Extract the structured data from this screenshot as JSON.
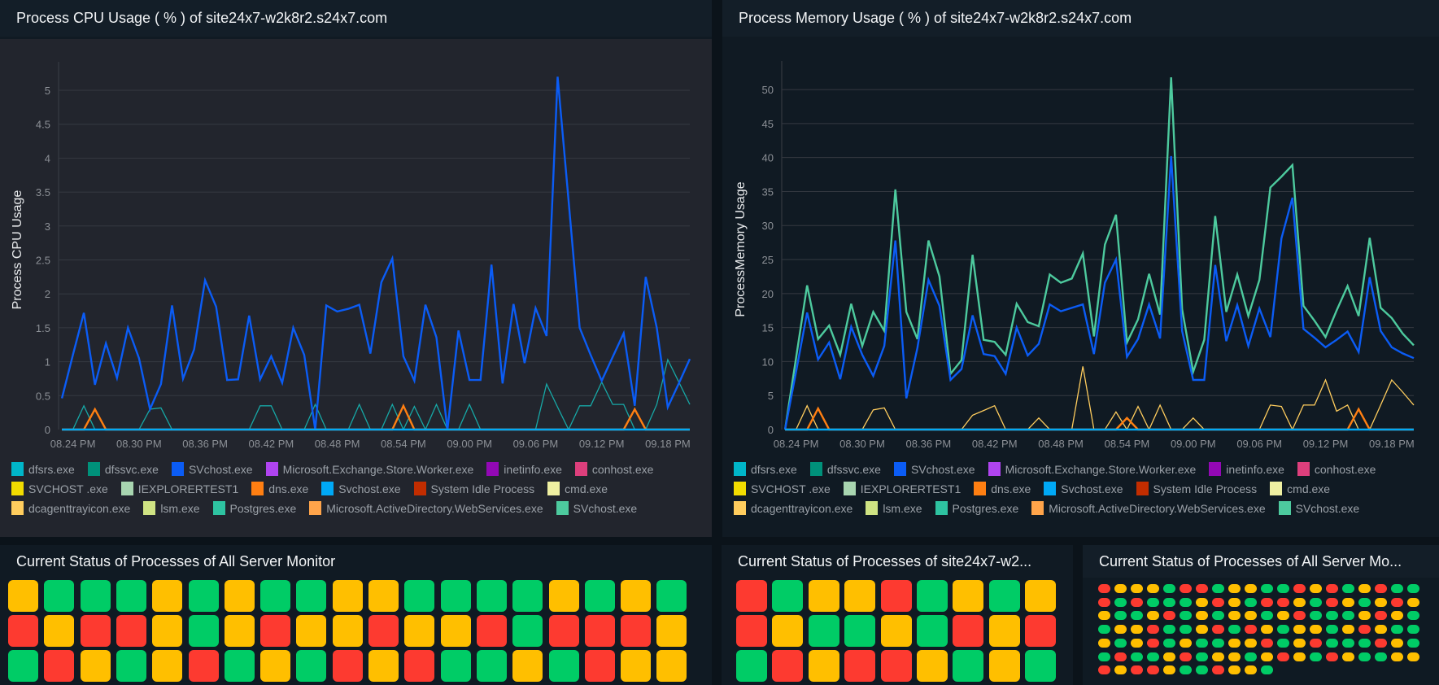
{
  "colors": {
    "up": "#00cc66",
    "trouble": "#ffbf00",
    "down": "#fd3a30"
  },
  "cpu_panel": {
    "title": "Process CPU Usage ( % ) of site24x7-w2k8r2.s24x7.com"
  },
  "memory_panel": {
    "title": "Process Memory Usage ( % ) of site24x7-w2k8r2.s24x7.com"
  },
  "legend": [
    {
      "label": "dfsrs.exe",
      "color": "#00b6c9"
    },
    {
      "label": "dfssvc.exe",
      "color": "#00917a"
    },
    {
      "label": "SVchost.exe",
      "color": "#0b5cf5"
    },
    {
      "label": "Microsoft.Exchange.Store.Worker.exe",
      "color": "#b044f0"
    },
    {
      "label": "inetinfo.exe",
      "color": "#9308b5"
    },
    {
      "label": "conhost.exe",
      "color": "#dd3f7c"
    },
    {
      "label": "SVCHOST .exe",
      "color": "#f2dc00"
    },
    {
      "label": "IEXPLORERTEST1",
      "color": "#a8d5b0"
    },
    {
      "label": "dns.exe",
      "color": "#ff7f12"
    },
    {
      "label": "Svchost.exe",
      "color": "#00a9f6"
    },
    {
      "label": "System Idle Process",
      "color": "#c22d00"
    },
    {
      "label": "cmd.exe",
      "color": "#eff0a2"
    },
    {
      "label": "dcagenttrayicon.exe",
      "color": "#ffcd5e"
    },
    {
      "label": "lsm.exe",
      "color": "#cfe383"
    },
    {
      "label": "Postgres.exe",
      "color": "#2ec3a1"
    },
    {
      "label": "Microsoft.ActiveDirectory.WebServices.exe",
      "color": "#ffa44a"
    },
    {
      "label": "SVchost.exe",
      "color": "#4dca9e"
    }
  ],
  "chart_data": [
    {
      "type": "line",
      "title": "Process CPU Usage ( % ) of site24x7-w2k8r2.s24x7.com",
      "ylabel": "Process CPU Usage",
      "xlabel": "",
      "ylim": [
        0,
        5.3
      ],
      "yticks": [
        "0",
        "0.5",
        "1",
        "1.5",
        "2",
        "2.5",
        "3",
        "3.5",
        "4",
        "4.5",
        "5"
      ],
      "ytick_values": [
        0,
        0.5,
        1,
        1.5,
        2,
        2.5,
        3,
        3.5,
        4,
        4.5,
        5
      ],
      "xticks": [
        "08.24 PM",
        "08.30 PM",
        "08.36 PM",
        "08.42 PM",
        "08.48 PM",
        "08.54 PM",
        "09.00 PM",
        "09.06 PM",
        "09.12 PM",
        "09.18 PM"
      ],
      "grid": true,
      "legend": "bottom",
      "x": [
        "08.23 PM",
        "08.24 PM",
        "08.25 PM",
        "08.26 PM",
        "08.27 PM",
        "08.28 PM",
        "08.29 PM",
        "08.30 PM",
        "08.31 PM",
        "08.32 PM",
        "08.33 PM",
        "08.34 PM",
        "08.35 PM",
        "08.36 PM",
        "08.37 PM",
        "08.38 PM",
        "08.39 PM",
        "08.40 PM",
        "08.41 PM",
        "08.42 PM",
        "08.43 PM",
        "08.44 PM",
        "08.45 PM",
        "08.46 PM",
        "08.47 PM",
        "08.48 PM",
        "08.49 PM",
        "08.50 PM",
        "08.51 PM",
        "08.52 PM",
        "08.53 PM",
        "08.54 PM",
        "08.55 PM",
        "08.56 PM",
        "08.57 PM",
        "08.58 PM",
        "08.59 PM",
        "09.00 PM",
        "09.01 PM",
        "09.02 PM",
        "09.03 PM",
        "09.04 PM",
        "09.05 PM",
        "09.06 PM",
        "09.07 PM",
        "09.08 PM",
        "09.09 PM",
        "09.10 PM",
        "09.11 PM",
        "09.12 PM",
        "09.13 PM",
        "09.14 PM",
        "09.15 PM",
        "09.16 PM",
        "09.17 PM",
        "09.18 PM",
        "09.19 PM",
        "09.20 PM"
      ],
      "series": [
        {
          "name": "dfsrs.exe",
          "color": "#17a8a6",
          "values": [
            0,
            0,
            0.35,
            0,
            0,
            0,
            0,
            0,
            0.3,
            0.32,
            0,
            0,
            0,
            0,
            0,
            0,
            0,
            0,
            0.35,
            0.35,
            0,
            0,
            0,
            0.37,
            0,
            0,
            0,
            0.37,
            0,
            0,
            0.37,
            0,
            0.34,
            0,
            0.37,
            0,
            0,
            0.37,
            0,
            0,
            0,
            0,
            0,
            0,
            0.67,
            0.33,
            0,
            0.35,
            0.35,
            0.7,
            0.37,
            0.37,
            0,
            0,
            0.37,
            1.03,
            0.7,
            0.37
          ]
        },
        {
          "name": "dns.exe",
          "color": "#ff7f12",
          "values": [
            0,
            0,
            0,
            0.3,
            0,
            0,
            0,
            0,
            0,
            0,
            0,
            0,
            0,
            0,
            0,
            0,
            0,
            0,
            0,
            0,
            0,
            0,
            0,
            0,
            0,
            0,
            0,
            0,
            0,
            0,
            0,
            0.35,
            0,
            0,
            0,
            0,
            0,
            0,
            0,
            0,
            0,
            0,
            0,
            0,
            0,
            0,
            0,
            0,
            0,
            0,
            0,
            0,
            0.3,
            0,
            0,
            0,
            0,
            0
          ]
        },
        {
          "name": "SVchost.exe",
          "color": "#0b5cf5",
          "values": [
            0.46,
            1.1,
            1.72,
            0.66,
            1.27,
            0.76,
            1.5,
            1.05,
            0.3,
            0.67,
            1.83,
            0.75,
            1.18,
            2.2,
            1.81,
            0.73,
            0.74,
            1.68,
            0.74,
            1.08,
            0.69,
            1.5,
            1.1,
            0,
            1.83,
            1.74,
            1.78,
            1.84,
            1.12,
            2.17,
            2.52,
            1.08,
            0.72,
            1.84,
            1.36,
            0,
            1.46,
            0.73,
            0.73,
            2.43,
            0.68,
            1.85,
            0.98,
            1.79,
            1.38,
            5.2,
            3.37,
            1.5,
            1.1,
            0.72,
            1.07,
            1.42,
            0.35,
            2.25,
            1.5,
            0.33,
            0.68,
            1.04
          ]
        },
        {
          "name": "Svchost.exe",
          "color": "#00a9f6",
          "values": [
            0,
            0,
            0,
            0,
            0,
            0,
            0,
            0,
            0,
            0,
            0,
            0,
            0,
            0,
            0,
            0,
            0,
            0,
            0,
            0,
            0,
            0,
            0,
            0,
            0,
            0,
            0,
            0,
            0,
            0,
            0,
            0,
            0,
            0,
            0,
            0,
            0,
            0,
            0,
            0,
            0,
            0,
            0,
            0,
            0,
            0,
            0,
            0,
            0,
            0,
            0,
            0,
            0,
            0,
            0,
            0,
            0,
            0
          ]
        }
      ]
    },
    {
      "type": "line",
      "title": "Process Memory Usage ( % ) of site24x7-w2k8r2.s24x7.com",
      "ylabel": "ProcessMemory Usage",
      "xlabel": "",
      "ylim": [
        0,
        53
      ],
      "yticks": [
        "0",
        "5",
        "10",
        "15",
        "20",
        "25",
        "30",
        "35",
        "40",
        "45",
        "50"
      ],
      "ytick_values": [
        0,
        5,
        10,
        15,
        20,
        25,
        30,
        35,
        40,
        45,
        50
      ],
      "xticks": [
        "08.24 PM",
        "08.30 PM",
        "08.36 PM",
        "08.42 PM",
        "08.48 PM",
        "08.54 PM",
        "09.00 PM",
        "09.06 PM",
        "09.12 PM",
        "09.18 PM"
      ],
      "grid": true,
      "legend": "bottom",
      "x": [
        "08.23 PM",
        "08.24 PM",
        "08.25 PM",
        "08.26 PM",
        "08.27 PM",
        "08.28 PM",
        "08.29 PM",
        "08.30 PM",
        "08.31 PM",
        "08.32 PM",
        "08.33 PM",
        "08.34 PM",
        "08.35 PM",
        "08.36 PM",
        "08.37 PM",
        "08.38 PM",
        "08.39 PM",
        "08.40 PM",
        "08.41 PM",
        "08.42 PM",
        "08.43 PM",
        "08.44 PM",
        "08.45 PM",
        "08.46 PM",
        "08.47 PM",
        "08.48 PM",
        "08.49 PM",
        "08.50 PM",
        "08.51 PM",
        "08.52 PM",
        "08.53 PM",
        "08.54 PM",
        "08.55 PM",
        "08.56 PM",
        "08.57 PM",
        "08.58 PM",
        "08.59 PM",
        "09.00 PM",
        "09.01 PM",
        "09.02 PM",
        "09.03 PM",
        "09.04 PM",
        "09.05 PM",
        "09.06 PM",
        "09.07 PM",
        "09.08 PM",
        "09.09 PM",
        "09.10 PM",
        "09.11 PM",
        "09.12 PM",
        "09.13 PM",
        "09.14 PM",
        "09.15 PM",
        "09.16 PM",
        "09.17 PM",
        "09.18 PM",
        "09.19 PM",
        "09.20 PM"
      ],
      "series": [
        {
          "name": "dcagenttrayicon.exe",
          "color": "#ffcd5e",
          "values": [
            0,
            0,
            3.5,
            0,
            0,
            0,
            0,
            0,
            2.9,
            3.2,
            0,
            0,
            0,
            0,
            0,
            0,
            0,
            2.1,
            2.8,
            3.5,
            0,
            0,
            0,
            1.7,
            0,
            0,
            0,
            9.3,
            0,
            0,
            2.6,
            0,
            3.4,
            0,
            3.6,
            0,
            0,
            1.7,
            0,
            0,
            0,
            0,
            0,
            0,
            3.6,
            3.4,
            0,
            3.6,
            3.6,
            7.3,
            2.7,
            3.6,
            0,
            0,
            3.6,
            7.3,
            5.5,
            3.6
          ]
        },
        {
          "name": "dns.exe",
          "color": "#ff7f12",
          "values": [
            0,
            0,
            0,
            3.1,
            0,
            0,
            0,
            0,
            0,
            0,
            0,
            0,
            0,
            0,
            0,
            0,
            0,
            0,
            0,
            0,
            0,
            0,
            0,
            0,
            0,
            0,
            0,
            0,
            0,
            0,
            0,
            1.7,
            0,
            0,
            0,
            0,
            0,
            0,
            0,
            0,
            0,
            0,
            0,
            0,
            0,
            0,
            0,
            0,
            0,
            0,
            0,
            0,
            3.0,
            0,
            0,
            0,
            0,
            0
          ]
        },
        {
          "name": "SVchost.exe",
          "color": "#4dca9e",
          "values": [
            0,
            10.5,
            21.2,
            13.3,
            15.3,
            11,
            18.5,
            12.3,
            17.3,
            14.5,
            35.3,
            17.3,
            13.3,
            27.8,
            22.5,
            8.2,
            10.2,
            25.7,
            13.2,
            12.9,
            11,
            18.5,
            15.8,
            15.2,
            22.8,
            21.6,
            22.2,
            25.9,
            13.7,
            27.2,
            31.6,
            12.8,
            16.2,
            22.9,
            16.9,
            51.8,
            17.7,
            8.5,
            13.2,
            31.4,
            17.3,
            22.8,
            16.7,
            22,
            35.6,
            37.2,
            38.9,
            18.2,
            16,
            13.6,
            17.5,
            21.1,
            16.7,
            28.2,
            17.9,
            16.4,
            14.1,
            12.4
          ]
        },
        {
          "name": "SVchost.exe",
          "color": "#0b5cf5",
          "values": [
            0,
            8.5,
            17.2,
            10.3,
            12.8,
            7.4,
            15.1,
            11,
            7.9,
            12.3,
            27.8,
            4.6,
            12,
            22,
            18.2,
            7.3,
            8.9,
            16.8,
            11.1,
            10.8,
            8.2,
            15,
            10.9,
            12.6,
            18.4,
            17.4,
            17.9,
            18.4,
            11.1,
            21.6,
            25,
            10.7,
            13.3,
            18.4,
            13.4,
            40.2,
            14.5,
            7.3,
            7.3,
            24.2,
            13,
            18.3,
            12.3,
            17.8,
            13.6,
            28.1,
            34.1,
            14.8,
            13.5,
            12.1,
            13.2,
            14.4,
            11.4,
            22.4,
            14.5,
            12.1,
            11.2,
            10.5
          ]
        },
        {
          "name": "Svchost.exe",
          "color": "#00a9f6",
          "values": [
            0,
            0,
            0,
            0,
            0,
            0,
            0,
            0,
            0,
            0,
            0,
            0,
            0,
            0,
            0,
            0,
            0,
            0,
            0,
            0,
            0,
            0,
            0,
            0,
            0,
            0,
            0,
            0,
            0,
            0,
            0,
            0,
            0,
            0,
            0,
            0,
            0,
            0,
            0,
            0,
            0,
            0,
            0,
            0,
            0,
            0,
            0,
            0,
            0,
            0,
            0,
            0,
            0,
            0,
            0,
            0,
            0,
            0
          ]
        }
      ]
    }
  ],
  "status_all": {
    "title": "Current Status of Processes of All Server Monitor",
    "rows": [
      [
        "trouble",
        "up",
        "up",
        "up",
        "trouble",
        "up",
        "trouble",
        "up",
        "up",
        "trouble",
        "trouble",
        "up",
        "up",
        "up",
        "up",
        "trouble",
        "up",
        "trouble",
        "up"
      ],
      [
        "down",
        "trouble",
        "down",
        "down",
        "trouble",
        "up",
        "trouble",
        "down",
        "trouble",
        "trouble",
        "down",
        "trouble",
        "trouble",
        "down",
        "up",
        "down",
        "down",
        "down",
        "trouble"
      ],
      [
        "up",
        "down",
        "trouble",
        "up",
        "trouble",
        "down",
        "up",
        "trouble",
        "up",
        "down",
        "trouble",
        "down",
        "up",
        "up",
        "trouble",
        "up",
        "down",
        "trouble",
        "trouble"
      ]
    ]
  },
  "status_site": {
    "title": "Current Status of Processes of site24x7-w2...",
    "rows": [
      [
        "down",
        "up",
        "trouble",
        "trouble",
        "down",
        "up",
        "trouble",
        "up",
        "trouble"
      ],
      [
        "down",
        "trouble",
        "up",
        "up",
        "trouble",
        "up",
        "down",
        "trouble",
        "down"
      ],
      [
        "up",
        "down",
        "trouble",
        "down",
        "down",
        "trouble",
        "up",
        "trouble",
        "up"
      ]
    ]
  },
  "status_all_dots": {
    "title": "Current Status of Processes of All Server Mo...",
    "rows": [
      [
        "down",
        "trouble",
        "trouble",
        "trouble",
        "up",
        "down",
        "down",
        "up",
        "trouble",
        "trouble",
        "up",
        "up",
        "down",
        "trouble",
        "down",
        "up",
        "trouble",
        "down",
        "up",
        "up"
      ],
      [
        "down",
        "up",
        "down",
        "up",
        "up",
        "up",
        "trouble",
        "down",
        "trouble",
        "up",
        "down",
        "down",
        "trouble",
        "up",
        "down",
        "trouble",
        "up",
        "trouble",
        "down",
        "trouble"
      ],
      [
        "trouble",
        "up",
        "up",
        "trouble",
        "down",
        "up",
        "trouble",
        "up",
        "trouble",
        "trouble",
        "up",
        "trouble",
        "down",
        "up",
        "up",
        "up",
        "trouble",
        "down",
        "trouble",
        "up"
      ],
      [
        "up",
        "trouble",
        "trouble",
        "down",
        "up",
        "up",
        "trouble",
        "down",
        "up",
        "down",
        "trouble",
        "up",
        "trouble",
        "trouble",
        "up",
        "trouble",
        "down",
        "trouble",
        "up",
        "up"
      ],
      [
        "trouble",
        "up",
        "trouble",
        "down",
        "up",
        "trouble",
        "up",
        "up",
        "trouble",
        "trouble",
        "down",
        "up",
        "trouble",
        "down",
        "up",
        "up",
        "up",
        "down",
        "trouble",
        "up"
      ],
      [
        "up",
        "down",
        "up",
        "up",
        "trouble",
        "down",
        "up",
        "trouble",
        "trouble",
        "up",
        "trouble",
        "down",
        "trouble",
        "up",
        "down",
        "trouble",
        "up",
        "up",
        "trouble",
        "trouble"
      ],
      [
        "down",
        "trouble",
        "down",
        "down",
        "trouble",
        "up",
        "up",
        "down",
        "trouble",
        "trouble",
        "up"
      ]
    ]
  }
}
